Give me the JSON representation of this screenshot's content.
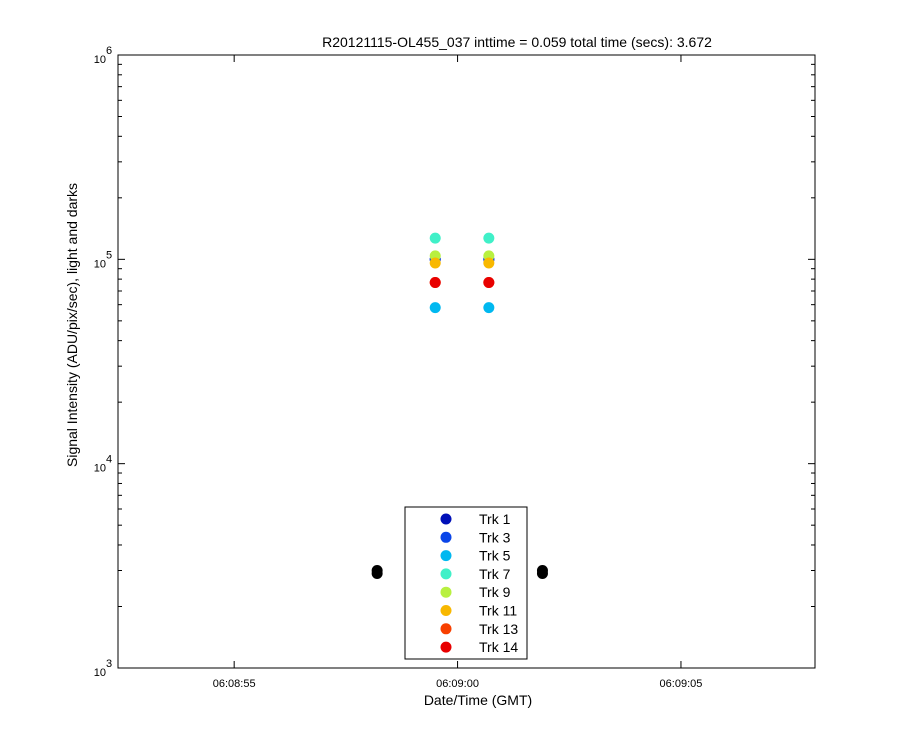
{
  "chart_data": {
    "type": "scatter",
    "title": "R20121115-OL455_037 inttime = 0.059 total time (secs): 3.672",
    "xlabel": "Date/Time (GMT)",
    "ylabel": "Signal Intensity (ADU/pix/sec), light and darks",
    "y_scale": "log",
    "ylim": [
      1000,
      1000000
    ],
    "y_ticks": [
      {
        "value": 1000,
        "base": "10",
        "exp": "3"
      },
      {
        "value": 10000,
        "base": "10",
        "exp": "4"
      },
      {
        "value": 100000,
        "base": "10",
        "exp": "5"
      },
      {
        "value": 1000000,
        "base": "10",
        "exp": "6"
      }
    ],
    "xlim": [
      "06:08:52.4",
      "06:09:08.0"
    ],
    "x_ticks": [
      "06:08:55",
      "06:09:00",
      "06:09:05"
    ],
    "grid": false,
    "legend_position": "bottom-center",
    "series": [
      {
        "name": "Trk 1",
        "color": "#0010b8",
        "points": [
          {
            "x": "06:08:59.5",
            "y": 100000
          },
          {
            "x": "06:09:00.7",
            "y": 100000
          }
        ]
      },
      {
        "name": "Trk 3",
        "color": "#0a45e8",
        "points": [
          {
            "x": "06:08:59.5",
            "y": 100000
          },
          {
            "x": "06:09:00.7",
            "y": 100000
          }
        ]
      },
      {
        "name": "Trk 5",
        "color": "#00b8f0",
        "points": [
          {
            "x": "06:08:59.5",
            "y": 58000
          },
          {
            "x": "06:09:00.7",
            "y": 58000
          }
        ]
      },
      {
        "name": "Trk 7",
        "color": "#40f0c8",
        "points": [
          {
            "x": "06:08:59.5",
            "y": 127000
          },
          {
            "x": "06:09:00.7",
            "y": 127000
          }
        ]
      },
      {
        "name": "Trk 9",
        "color": "#b8f040",
        "points": [
          {
            "x": "06:08:59.5",
            "y": 104000
          },
          {
            "x": "06:09:00.7",
            "y": 104000
          }
        ]
      },
      {
        "name": "Trk 11",
        "color": "#f8b800",
        "points": [
          {
            "x": "06:08:59.5",
            "y": 96000
          },
          {
            "x": "06:09:00.7",
            "y": 96000
          }
        ]
      },
      {
        "name": "Trk 13",
        "color": "#f84000",
        "points": [
          {
            "x": "06:08:59.5",
            "y": 77000
          },
          {
            "x": "06:09:00.7",
            "y": 77000
          }
        ]
      },
      {
        "name": "Trk 14",
        "color": "#e80000",
        "points": [
          {
            "x": "06:08:59.5",
            "y": 77000
          },
          {
            "x": "06:09:00.7",
            "y": 77000
          }
        ]
      }
    ],
    "dark_points": {
      "color": "#000000",
      "points": [
        {
          "x": "06:08:58.2",
          "y": 2900
        },
        {
          "x": "06:08:58.2",
          "y": 3000
        },
        {
          "x": "06:09:01.9",
          "y": 2900
        },
        {
          "x": "06:09:01.9",
          "y": 3000
        }
      ]
    }
  }
}
